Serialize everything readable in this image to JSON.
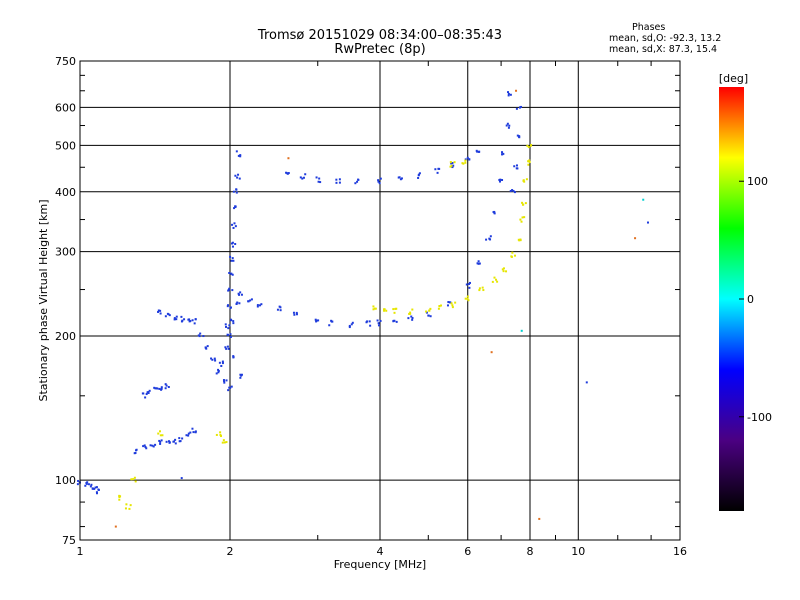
{
  "chart_data": {
    "type": "scatter",
    "title": "Tromsø 20151029 08:34:00–08:35:43",
    "subtitle": "RwPretec (8p)",
    "xlabel": "Frequency [MHz]",
    "ylabel": "Stationary phase Virtual Height [km]",
    "x_scale": "log",
    "y_scale": "log",
    "xlim": [
      1,
      16
    ],
    "ylim": [
      75,
      750
    ],
    "x_ticks": [
      1,
      2,
      4,
      6,
      8,
      10,
      16
    ],
    "y_ticks": [
      75,
      100,
      200,
      300,
      400,
      500,
      600,
      750
    ],
    "grid": true,
    "phase_stats": {
      "heading": "Phases",
      "o_line": "mean, sd,O: -92.3, 13.2",
      "x_line": "mean, sd,X: 87.3, 15.4"
    },
    "colorbar": {
      "label": "[deg]",
      "ticks": [
        100,
        0,
        -100
      ],
      "range": [
        -180,
        180
      ],
      "colors": [
        "#000000",
        "#4b0082",
        "#0000ff",
        "#00ffff",
        "#00ff00",
        "#ffff00",
        "#ff0000"
      ]
    },
    "series": [
      {
        "color": "#1f3cdc",
        "points": [
          [
            1.0,
            99
          ],
          [
            1.03,
            98
          ],
          [
            1.05,
            97
          ],
          [
            1.07,
            96
          ],
          [
            1.09,
            95
          ],
          [
            1.3,
            115
          ],
          [
            1.35,
            117
          ],
          [
            1.4,
            118
          ],
          [
            1.45,
            120
          ],
          [
            1.5,
            121
          ],
          [
            1.55,
            120
          ],
          [
            1.6,
            122
          ],
          [
            1.65,
            125
          ],
          [
            1.7,
            127
          ],
          [
            1.35,
            150
          ],
          [
            1.38,
            152
          ],
          [
            1.42,
            154
          ],
          [
            1.46,
            156
          ],
          [
            1.5,
            157
          ],
          [
            1.45,
            225
          ],
          [
            1.5,
            222
          ],
          [
            1.55,
            219
          ],
          [
            1.6,
            217
          ],
          [
            1.65,
            216
          ],
          [
            1.7,
            215
          ],
          [
            1.75,
            200
          ],
          [
            1.8,
            190
          ],
          [
            1.85,
            178
          ],
          [
            1.9,
            168
          ],
          [
            1.95,
            160
          ],
          [
            2.0,
            155
          ],
          [
            1.97,
            190
          ],
          [
            1.98,
            210
          ],
          [
            1.99,
            230
          ],
          [
            2.0,
            250
          ],
          [
            2.01,
            270
          ],
          [
            2.02,
            290
          ],
          [
            2.03,
            310
          ],
          [
            2.04,
            340
          ],
          [
            2.05,
            370
          ],
          [
            2.06,
            400
          ],
          [
            2.07,
            430
          ],
          [
            2.08,
            480
          ],
          [
            1.93,
            175
          ],
          [
            2.0,
            200
          ],
          [
            2.03,
            215
          ],
          [
            2.05,
            180
          ],
          [
            2.07,
            235
          ],
          [
            2.1,
            165
          ],
          [
            2.1,
            245
          ],
          [
            2.2,
            236
          ],
          [
            2.3,
            232
          ],
          [
            2.5,
            228
          ],
          [
            2.7,
            223
          ],
          [
            3.0,
            216
          ],
          [
            3.2,
            213
          ],
          [
            3.5,
            211
          ],
          [
            3.8,
            212
          ],
          [
            4.0,
            213
          ],
          [
            4.3,
            215
          ],
          [
            4.6,
            217
          ],
          [
            5.0,
            222
          ],
          [
            5.5,
            234
          ],
          [
            6.0,
            255
          ],
          [
            6.3,
            285
          ],
          [
            6.6,
            320
          ],
          [
            6.8,
            360
          ],
          [
            7.0,
            420
          ],
          [
            7.1,
            480
          ],
          [
            7.2,
            550
          ],
          [
            7.3,
            640
          ],
          [
            2.6,
            440
          ],
          [
            2.8,
            430
          ],
          [
            3.0,
            424
          ],
          [
            3.3,
            421
          ],
          [
            3.6,
            420
          ],
          [
            4.0,
            421
          ],
          [
            4.4,
            425
          ],
          [
            4.8,
            432
          ],
          [
            5.2,
            442
          ],
          [
            5.6,
            455
          ],
          [
            6.0,
            470
          ],
          [
            6.3,
            490
          ],
          [
            7.4,
            400
          ],
          [
            7.5,
            450
          ],
          [
            7.55,
            520
          ],
          [
            7.6,
            600
          ]
        ]
      },
      {
        "color": "#e6e600",
        "points": [
          [
            1.2,
            92
          ],
          [
            1.25,
            88
          ],
          [
            1.28,
            100
          ],
          [
            3.9,
            228
          ],
          [
            4.1,
            226
          ],
          [
            4.3,
            226
          ],
          [
            4.6,
            225
          ],
          [
            5.0,
            227
          ],
          [
            5.3,
            230
          ],
          [
            5.6,
            232
          ],
          [
            6.0,
            240
          ],
          [
            6.4,
            250
          ],
          [
            6.8,
            262
          ],
          [
            7.1,
            275
          ],
          [
            7.4,
            295
          ],
          [
            7.6,
            320
          ],
          [
            7.7,
            350
          ],
          [
            7.8,
            380
          ],
          [
            7.85,
            420
          ],
          [
            7.9,
            460
          ],
          [
            7.95,
            500
          ],
          [
            5.6,
            456
          ],
          [
            5.9,
            462
          ],
          [
            1.9,
            125
          ],
          [
            1.95,
            120
          ],
          [
            1.45,
            125
          ]
        ]
      },
      {
        "color": "#e07020",
        "points": [
          [
            1.18,
            80
          ],
          [
            2.62,
            470
          ],
          [
            6.7,
            185
          ],
          [
            8.35,
            83
          ],
          [
            7.5,
            650
          ],
          [
            13.0,
            320
          ]
        ]
      },
      {
        "color": "#00d0d0",
        "points": [
          [
            7.7,
            205
          ],
          [
            13.5,
            385
          ]
        ]
      },
      {
        "color": "#1f3cdc",
        "points": [
          [
            10.4,
            160
          ],
          [
            13.8,
            345
          ],
          [
            1.6,
            101
          ]
        ]
      }
    ]
  }
}
